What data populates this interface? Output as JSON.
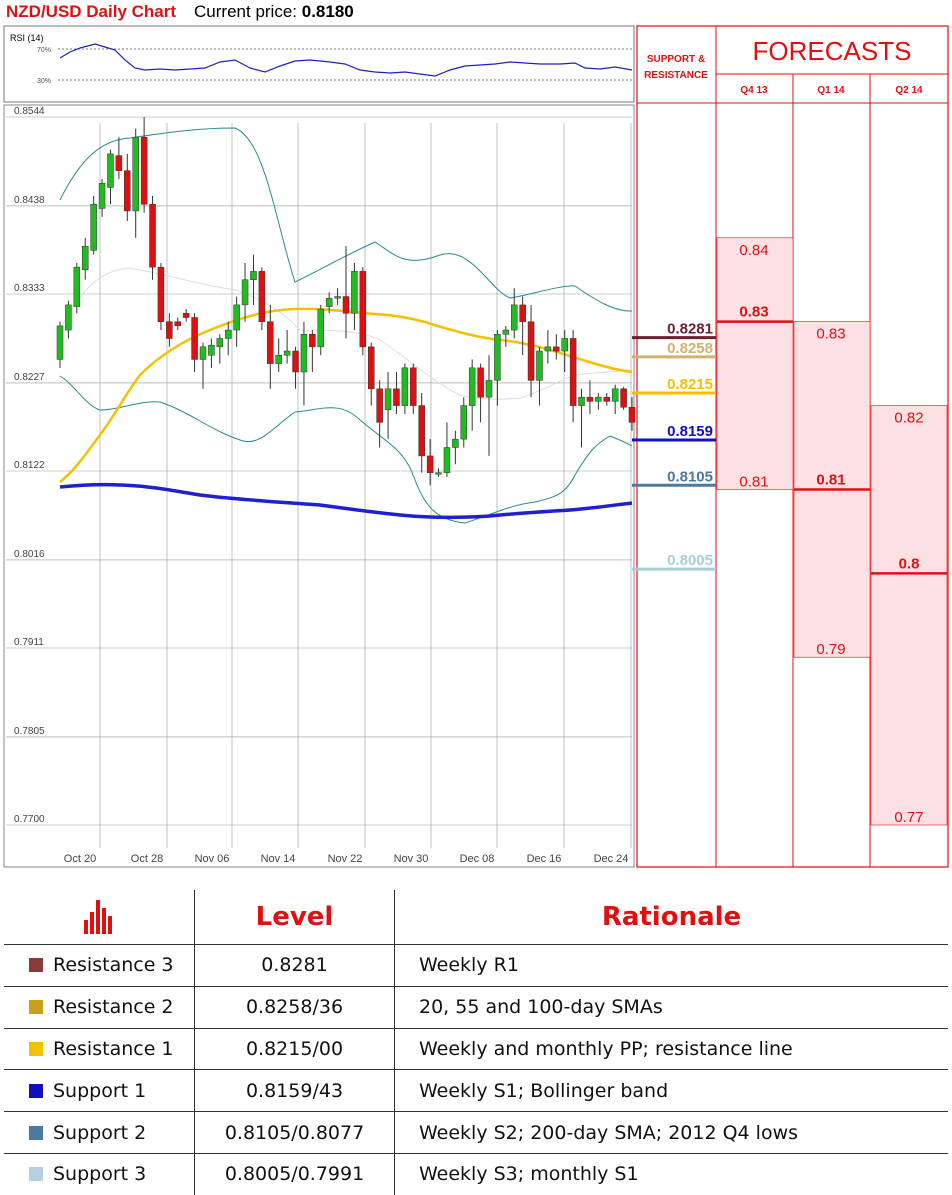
{
  "header": {
    "title": "NZD/USD Daily Chart",
    "price_label": "Current price:",
    "price_value": "0.8180"
  },
  "rsi": {
    "label": "RSI (14)",
    "levels": [
      "70%",
      "30%"
    ]
  },
  "chart_data": {
    "type": "candlestick",
    "ylim": [
      0.77,
      0.8544
    ],
    "y_ticks": [
      "0.8544",
      "0.8438",
      "0.8333",
      "0.8227",
      "0.8122",
      "0.8016",
      "0.7911",
      "0.7805",
      "0.7700"
    ],
    "x_ticks": [
      "Oct 20",
      "Oct 28",
      "Nov 06",
      "Nov 14",
      "Nov 22",
      "Nov 30",
      "Dec 08",
      "Dec 16",
      "Dec 24"
    ],
    "candles": [
      [
        0.8255,
        0.83,
        0.8245,
        0.8295
      ],
      [
        0.829,
        0.8325,
        0.828,
        0.832
      ],
      [
        0.8318,
        0.837,
        0.831,
        0.8365
      ],
      [
        0.8362,
        0.84,
        0.835,
        0.839
      ],
      [
        0.8385,
        0.845,
        0.838,
        0.844
      ],
      [
        0.8435,
        0.847,
        0.8425,
        0.8465
      ],
      [
        0.846,
        0.8505,
        0.844,
        0.85
      ],
      [
        0.8498,
        0.852,
        0.847,
        0.848
      ],
      [
        0.848,
        0.85,
        0.842,
        0.8432
      ],
      [
        0.8432,
        0.853,
        0.84,
        0.852
      ],
      [
        0.852,
        0.8544,
        0.843,
        0.844
      ],
      [
        0.844,
        0.845,
        0.835,
        0.8365
      ],
      [
        0.8365,
        0.837,
        0.829,
        0.83
      ],
      [
        0.83,
        0.831,
        0.827,
        0.828
      ],
      [
        0.83,
        0.8305,
        0.829,
        0.8295
      ],
      [
        0.831,
        0.8315,
        0.83,
        0.8305
      ],
      [
        0.8305,
        0.831,
        0.824,
        0.8255
      ],
      [
        0.8255,
        0.8275,
        0.822,
        0.827
      ],
      [
        0.826,
        0.828,
        0.8245,
        0.8272
      ],
      [
        0.827,
        0.8285,
        0.825,
        0.828
      ],
      [
        0.828,
        0.83,
        0.826,
        0.829
      ],
      [
        0.829,
        0.833,
        0.827,
        0.832
      ],
      [
        0.832,
        0.837,
        0.83,
        0.835
      ],
      [
        0.835,
        0.838,
        0.832,
        0.836
      ],
      [
        0.836,
        0.8365,
        0.829,
        0.83
      ],
      [
        0.83,
        0.832,
        0.822,
        0.825
      ],
      [
        0.825,
        0.828,
        0.824,
        0.826
      ],
      [
        0.826,
        0.829,
        0.825,
        0.8265
      ],
      [
        0.8265,
        0.827,
        0.822,
        0.824
      ],
      [
        0.824,
        0.83,
        0.82,
        0.8285
      ],
      [
        0.8285,
        0.829,
        0.824,
        0.827
      ],
      [
        0.827,
        0.832,
        0.826,
        0.8315
      ],
      [
        0.8318,
        0.8335,
        0.831,
        0.8328
      ],
      [
        0.8328,
        0.834,
        0.832,
        0.833
      ],
      [
        0.833,
        0.839,
        0.828,
        0.831
      ],
      [
        0.831,
        0.837,
        0.829,
        0.836
      ],
      [
        0.836,
        0.8365,
        0.826,
        0.827
      ],
      [
        0.827,
        0.8275,
        0.82,
        0.822
      ],
      [
        0.822,
        0.823,
        0.815,
        0.818
      ],
      [
        0.8195,
        0.824,
        0.816,
        0.822
      ],
      [
        0.822,
        0.824,
        0.819,
        0.82
      ],
      [
        0.82,
        0.825,
        0.819,
        0.8245
      ],
      [
        0.8245,
        0.825,
        0.819,
        0.82
      ],
      [
        0.82,
        0.8215,
        0.812,
        0.814
      ],
      [
        0.814,
        0.816,
        0.8105,
        0.812
      ],
      [
        0.812,
        0.8125,
        0.8115,
        0.812
      ],
      [
        0.812,
        0.818,
        0.8115,
        0.815
      ],
      [
        0.815,
        0.817,
        0.813,
        0.816
      ],
      [
        0.816,
        0.821,
        0.815,
        0.82
      ],
      [
        0.82,
        0.8255,
        0.817,
        0.8245
      ],
      [
        0.8245,
        0.825,
        0.818,
        0.821
      ],
      [
        0.821,
        0.826,
        0.814,
        0.823
      ],
      [
        0.823,
        0.829,
        0.82,
        0.8285
      ],
      [
        0.8285,
        0.8295,
        0.827,
        0.829
      ],
      [
        0.829,
        0.834,
        0.828,
        0.832
      ],
      [
        0.832,
        0.833,
        0.826,
        0.83
      ],
      [
        0.83,
        0.832,
        0.821,
        0.823
      ],
      [
        0.823,
        0.827,
        0.82,
        0.8265
      ],
      [
        0.8265,
        0.829,
        0.825,
        0.827
      ],
      [
        0.827,
        0.8285,
        0.8255,
        0.8265
      ],
      [
        0.8265,
        0.829,
        0.824,
        0.828
      ],
      [
        0.828,
        0.829,
        0.818,
        0.82
      ],
      [
        0.82,
        0.822,
        0.815,
        0.821
      ],
      [
        0.821,
        0.823,
        0.819,
        0.8205
      ],
      [
        0.8205,
        0.8215,
        0.8195,
        0.821
      ],
      [
        0.821,
        0.8215,
        0.82,
        0.8205
      ],
      [
        0.8205,
        0.8225,
        0.819,
        0.822
      ],
      [
        0.822,
        0.8222,
        0.8195,
        0.8198
      ],
      [
        0.8198,
        0.821,
        0.817,
        0.818
      ]
    ],
    "sr_levels": [
      {
        "name": "Resistance 3",
        "value": 0.8281,
        "label": "0.8281",
        "color": "#6b1f2f"
      },
      {
        "name": "Resistance 2",
        "value": 0.8258,
        "label": "0.8258",
        "color": "#d4b070"
      },
      {
        "name": "Resistance 1",
        "value": 0.8215,
        "label": "0.8215",
        "color": "#f5c000"
      },
      {
        "name": "Support 1",
        "value": 0.8159,
        "label": "0.8159",
        "color": "#1010c0"
      },
      {
        "name": "Support 2",
        "value": 0.8105,
        "label": "0.8105",
        "color": "#4a7aa0"
      },
      {
        "name": "Support 3",
        "value": 0.8005,
        "label": "0.8005",
        "color": "#a8cfd8"
      }
    ],
    "forecasts": [
      {
        "period": "Q4 13",
        "high": 0.84,
        "mid": 0.83,
        "low": 0.81,
        "high_label": "0.84",
        "mid_label": "0.83",
        "low_label": "0.81"
      },
      {
        "period": "Q1 14",
        "high": 0.83,
        "mid": 0.81,
        "low": 0.79,
        "high_label": "0.83",
        "mid_label": "0.81",
        "low_label": "0.79"
      },
      {
        "period": "Q2 14",
        "high": 0.82,
        "mid": 0.8,
        "low": 0.77,
        "high_label": "0.82",
        "mid_label": "0.8",
        "low_label": "0.77"
      }
    ],
    "colors": {
      "up": "#22bb22",
      "down": "#dd1111",
      "sma_fast": "#f5c000",
      "sma_slow": "#2020d0",
      "bollinger": "#2a8a8a"
    }
  },
  "panel": {
    "sr_title": "SUPPORT & RESISTANCE",
    "forecasts_title": "FORECASTS"
  },
  "table": {
    "head": {
      "level": "Level",
      "rationale": "Rationale"
    },
    "rows": [
      {
        "name": "Resistance 3",
        "level": "0.8281",
        "rationale": "Weekly R1",
        "color": "#8b3a3a"
      },
      {
        "name": "Resistance 2",
        "level": "0.8258/36",
        "rationale": "20, 55 and 100-day SMAs",
        "color": "#c8a020"
      },
      {
        "name": "Resistance 1",
        "level": "0.8215/00",
        "rationale": "Weekly and monthly PP; resistance line",
        "color": "#f5c000"
      },
      {
        "name": "Support 1",
        "level": "0.8159/43",
        "rationale": "Weekly S1; Bollinger band",
        "color": "#1010c0"
      },
      {
        "name": "Support 2",
        "level": "0.8105/0.8077",
        "rationale": "Weekly S2; 200-day SMA; 2012 Q4 lows",
        "color": "#4a7aa0"
      },
      {
        "name": "Support 3",
        "level": "0.8005/0.7991",
        "rationale": "Weekly S3; monthly S1",
        "color": "#b8cfe0"
      }
    ]
  }
}
